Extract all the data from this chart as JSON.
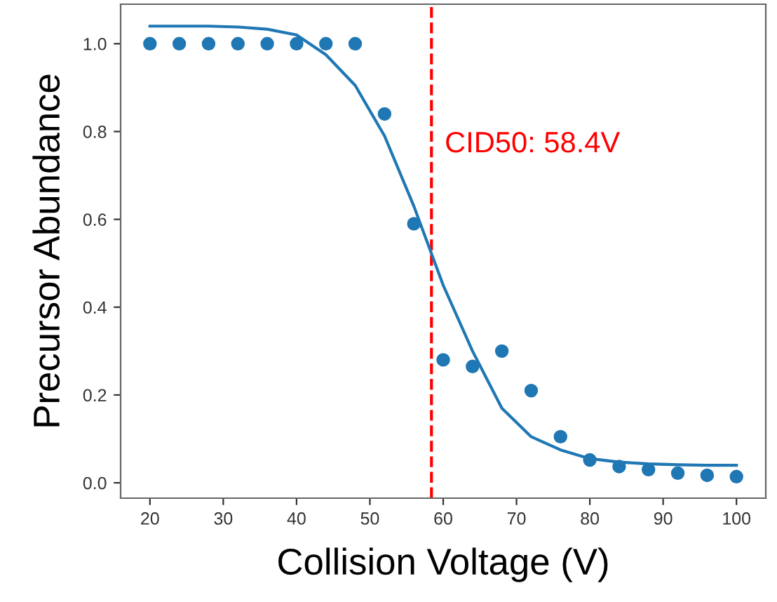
{
  "chart_data": {
    "type": "scatter",
    "xlabel": "Collision Voltage (V)",
    "ylabel": "Precursor Abundance",
    "x": [
      20,
      24,
      28,
      32,
      36,
      40,
      44,
      48,
      52,
      56,
      60,
      64,
      68,
      72,
      76,
      80,
      84,
      88,
      92,
      96,
      100
    ],
    "series": [
      {
        "color": "#1f77b4",
        "marker": "circle",
        "values": [
          1.0,
          1.0,
          1.0,
          1.0,
          1.0,
          1.0,
          1.0,
          1.0,
          0.84,
          0.59,
          0.28,
          0.265,
          0.3,
          0.21,
          0.105,
          0.052,
          0.037,
          0.03,
          0.022,
          0.017,
          0.014
        ]
      },
      {
        "type": "line",
        "color": "#1f77b4",
        "line_style": "solid",
        "values": [
          1.04,
          1.04,
          1.04,
          1.038,
          1.033,
          1.02,
          0.975,
          0.905,
          0.79,
          0.63,
          0.45,
          0.3,
          0.17,
          0.105,
          0.075,
          0.055,
          0.047,
          0.043,
          0.041,
          0.04,
          0.04
        ]
      }
    ],
    "ref_lines": [
      {
        "axis": "x",
        "value": 58.4,
        "label": "CID50: 58.4V",
        "color": "#ff0000",
        "line_style": "dashed"
      }
    ],
    "xlim": [
      16,
      104
    ],
    "ylim": [
      -0.035,
      1.09
    ],
    "xticks": [
      20,
      30,
      40,
      50,
      60,
      70,
      80,
      90,
      100
    ],
    "yticks": [
      {
        "value": 0,
        "label": "0.0"
      },
      {
        "value": 0.2,
        "label": "0.2"
      },
      {
        "value": 0.4,
        "label": "0.4"
      },
      {
        "value": 0.6,
        "label": "0.6"
      },
      {
        "value": 0.8,
        "label": "0.8"
      },
      {
        "value": 1.0,
        "label": "1.0"
      }
    ],
    "grid": false
  }
}
